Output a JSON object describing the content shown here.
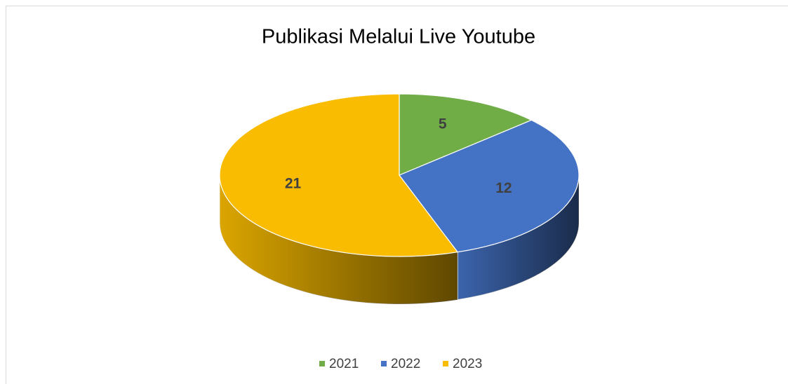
{
  "chart_data": {
    "type": "pie",
    "title": "Publikasi Melalui Live Youtube",
    "categories": [
      "2021",
      "2022",
      "2023"
    ],
    "values": [
      5,
      12,
      21
    ],
    "colors": [
      "#70ad47",
      "#4472c4",
      "#f9bc00"
    ],
    "legend": "bottom"
  }
}
